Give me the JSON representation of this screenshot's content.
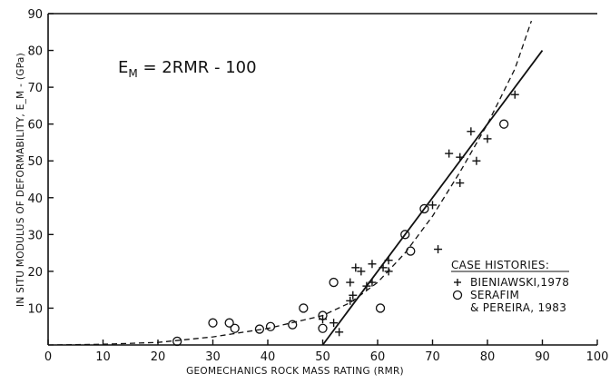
{
  "chart_data": {
    "type": "scatter",
    "xlabel": "GEOMECHANICS ROCK MASS RATING (RMR)",
    "ylabel": "IN SITU MODULUS OF DEFORMABILITY, E_M - (GPa)",
    "xlim": [
      0,
      100
    ],
    "ylim": [
      0,
      90
    ],
    "xticks": [
      0,
      10,
      20,
      30,
      40,
      50,
      60,
      70,
      80,
      90,
      100
    ],
    "yticks": [
      10,
      20,
      30,
      40,
      50,
      60,
      70,
      80,
      90
    ],
    "grid": false,
    "annotation": {
      "equation_prefix": "E",
      "equation_subscript": "M",
      "equation_suffix": " = 2RMR - 100"
    },
    "legend": {
      "title": "CASE HISTORIES:",
      "entries": [
        {
          "marker": "+",
          "line1": "BIENIAWSKI,1978",
          "line2": ""
        },
        {
          "marker": "circle",
          "line1": "SERAFIM",
          "line2": "& PEREIRA, 1983"
        }
      ],
      "position": "bottom-right"
    },
    "series": [
      {
        "name": "BIENIAWSKI,1978",
        "marker": "+",
        "points": [
          [
            50,
            7
          ],
          [
            52,
            6
          ],
          [
            53,
            3.5
          ],
          [
            55,
            12
          ],
          [
            55,
            17
          ],
          [
            55.5,
            13.5
          ],
          [
            56,
            21
          ],
          [
            57,
            20
          ],
          [
            58,
            16
          ],
          [
            59,
            17
          ],
          [
            59,
            22
          ],
          [
            61,
            21
          ],
          [
            62,
            20
          ],
          [
            62,
            23
          ],
          [
            70,
            38
          ],
          [
            71,
            26
          ],
          [
            73,
            52
          ],
          [
            75,
            44
          ],
          [
            75,
            51
          ],
          [
            77,
            58
          ],
          [
            78,
            50
          ],
          [
            80,
            56
          ],
          [
            85,
            68
          ]
        ]
      },
      {
        "name": "SERAFIM & PEREIRA, 1983",
        "marker": "circle",
        "points": [
          [
            23.5,
            1
          ],
          [
            30,
            6
          ],
          [
            33,
            6
          ],
          [
            34,
            4.5
          ],
          [
            38.5,
            4.3
          ],
          [
            40.5,
            5
          ],
          [
            44.5,
            5.5
          ],
          [
            46.5,
            10
          ],
          [
            50,
            4.5
          ],
          [
            50,
            8
          ],
          [
            52,
            17
          ],
          [
            60.5,
            10
          ],
          [
            65,
            30
          ],
          [
            66,
            25.5
          ],
          [
            68.5,
            37
          ],
          [
            83,
            60
          ]
        ]
      },
      {
        "name": "",
        "type": "line",
        "style": "solid",
        "points": [
          [
            50,
            0
          ],
          [
            90,
            80
          ]
        ]
      },
      {
        "name": "",
        "type": "line",
        "style": "dashed",
        "points": [
          [
            0,
            0
          ],
          [
            10,
            0.2
          ],
          [
            20,
            0.7
          ],
          [
            30,
            2.2
          ],
          [
            40,
            4.5
          ],
          [
            50,
            8
          ],
          [
            55,
            11.5
          ],
          [
            60,
            17
          ],
          [
            65,
            25
          ],
          [
            70,
            35
          ],
          [
            75,
            47
          ],
          [
            80,
            60
          ],
          [
            85,
            75
          ],
          [
            88,
            88
          ]
        ]
      }
    ]
  }
}
